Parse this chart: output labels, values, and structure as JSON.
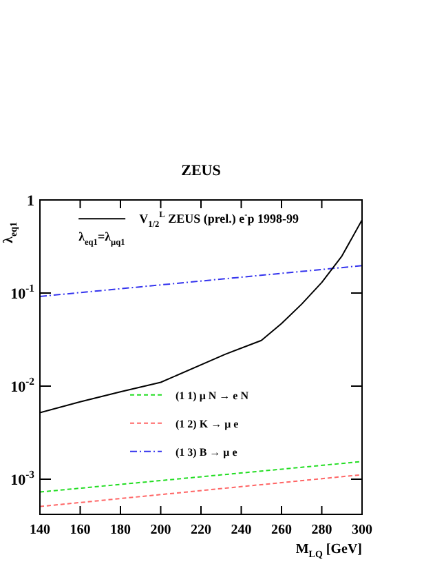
{
  "chart_data": {
    "type": "line",
    "title": "ZEUS",
    "xlabel": "M$_{LQ}$ [GeV]",
    "ylabel": "λ$_{eq1}$",
    "log": "y",
    "xlim": [
      140,
      300
    ],
    "xticks": [
      140,
      160,
      180,
      200,
      220,
      240,
      260,
      280,
      300
    ],
    "ylim": [
      0.00042,
      1
    ],
    "yticks": [
      {
        "value": 0.001,
        "label": "10$^{-3}$"
      },
      {
        "value": 0.01,
        "label": "10$^{-2}$"
      },
      {
        "value": 0.1,
        "label": "10$^{-1}$"
      },
      {
        "value": 1,
        "label": "1"
      }
    ],
    "grid": false,
    "legend": "top left",
    "marker": "none",
    "annotations": [
      "λ$_{eq1}$=λ$_{μq1}$"
    ],
    "series": [
      {
        "name": "V$_{1/2}$$^{L}$ ZEUS (prel.) e$^{-}$p 1998-99",
        "color": "#000000",
        "line_style": "solid",
        "x": [
          140,
          160,
          180,
          200,
          232,
          250,
          260,
          270,
          280,
          290,
          300
        ],
        "values": [
          0.0052,
          0.0068,
          0.0087,
          0.011,
          0.022,
          0.031,
          0.047,
          0.076,
          0.13,
          0.25,
          0.61
        ]
      },
      {
        "name": "(1 1) μ N → e N",
        "color": "#22dd22",
        "line_style": "dashed",
        "x": [
          140,
          300
        ],
        "values": [
          0.00073,
          0.00155
        ]
      },
      {
        "name": "(1 2) K → μ e",
        "color": "#ff6666",
        "line_style": "dashed",
        "x": [
          140,
          300
        ],
        "values": [
          0.00051,
          0.00112
        ]
      },
      {
        "name": "(1 3) B → μ e",
        "color": "#3333ee",
        "line_style": "dashdot",
        "x": [
          140,
          300
        ],
        "values": [
          0.092,
          0.197
        ]
      }
    ]
  }
}
